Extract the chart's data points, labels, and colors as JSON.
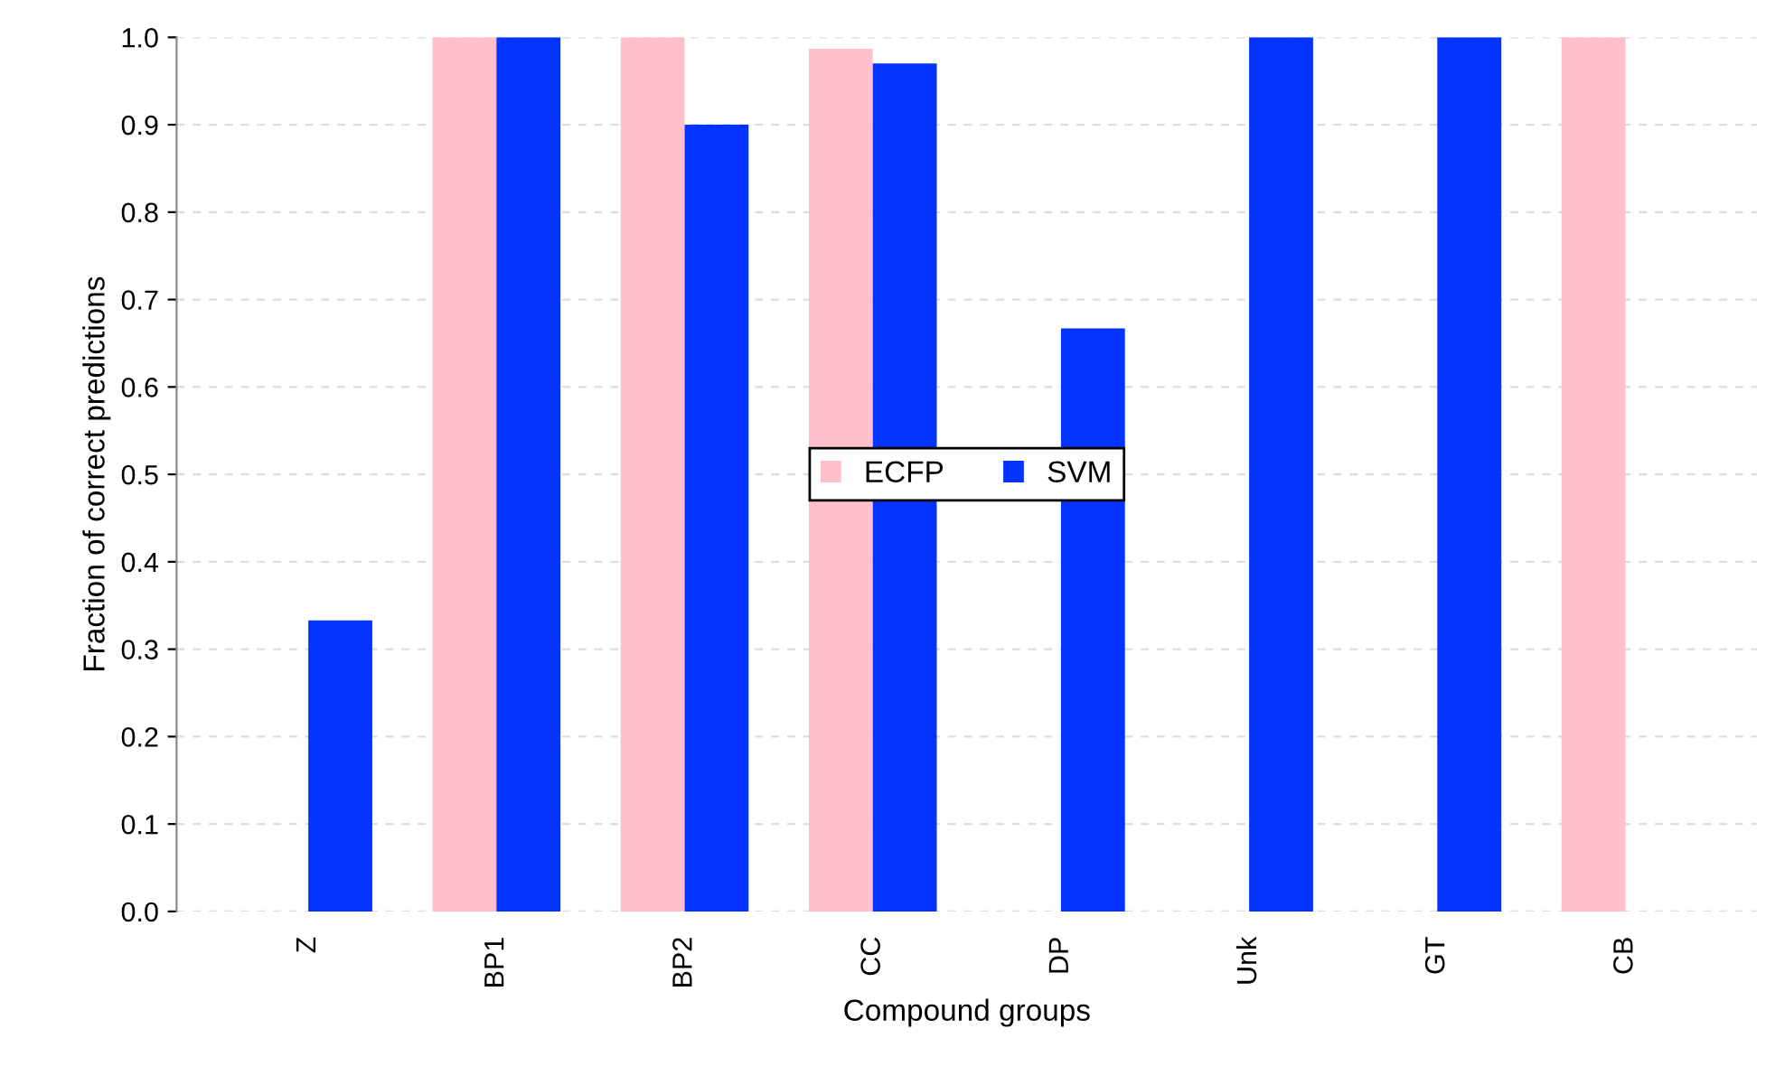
{
  "chart_data": {
    "type": "bar",
    "xlabel": "Compound groups",
    "ylabel": "Fraction of correct predictions",
    "categories": [
      "Z",
      "BP1",
      "BP2",
      "CC",
      "DP",
      "Unk",
      "GT",
      "CB"
    ],
    "series": [
      {
        "name": "ECFP",
        "color": "#ffc0cb",
        "values": [
          0,
          1.0,
          1.0,
          0.987,
          0,
          0,
          0,
          1.0
        ]
      },
      {
        "name": "SVM",
        "color": "#0433ff",
        "values": [
          0.333,
          1.0,
          0.9,
          0.97,
          0.667,
          1.0,
          1.0,
          0
        ]
      }
    ],
    "ylim": [
      0,
      1.0
    ],
    "yticks": [
      {
        "value": 0,
        "label": "0.0"
      },
      0.1,
      0.2,
      0.3,
      0.4,
      0.5,
      0.6,
      0.7,
      0.8,
      0.9,
      {
        "value": 1.0,
        "label": "1.0"
      }
    ],
    "grid": "y",
    "legend": "center"
  }
}
